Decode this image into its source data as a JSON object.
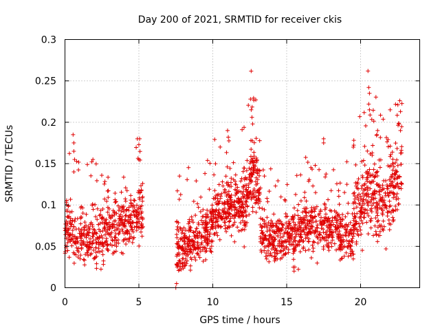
{
  "chart_data": {
    "type": "scatter",
    "title": "Day 200 of 2021, SRMTID for receiver ckis",
    "xlabel": "GPS time / hours",
    "ylabel": "SRMTID / TECUs",
    "xlim": [
      0,
      24
    ],
    "ylim": [
      0,
      0.3
    ],
    "x_ticks": [
      0,
      5,
      10,
      15,
      20
    ],
    "x_tick_labels": [
      "0",
      "5",
      "10",
      "15",
      "20"
    ],
    "y_ticks": [
      0,
      0.05,
      0.1,
      0.15,
      0.2,
      0.25,
      0.3
    ],
    "y_tick_labels": [
      "0",
      "0.05",
      "0.1",
      "0.15",
      "0.2",
      "0.25",
      "0.3"
    ],
    "grid": true,
    "marker": "plus",
    "color": "#e00000",
    "series": [
      {
        "name": "SRMTID",
        "segments": [
          {
            "x_start": 0.0,
            "x_end": 5.3,
            "trend": [
              [
                0.0,
                0.075
              ],
              [
                0.5,
                0.07
              ],
              [
                1.0,
                0.06
              ],
              [
                1.5,
                0.06
              ],
              [
                2.0,
                0.055
              ],
              [
                2.5,
                0.065
              ],
              [
                3.0,
                0.07
              ],
              [
                3.5,
                0.075
              ],
              [
                4.0,
                0.08
              ],
              [
                4.5,
                0.085
              ],
              [
                5.0,
                0.09
              ],
              [
                5.3,
                0.095
              ]
            ],
            "spread": 0.022,
            "count": 520
          },
          {
            "x_start": 7.5,
            "x_end": 12.0,
            "trend": [
              [
                7.5,
                0.045
              ],
              [
                8.0,
                0.05
              ],
              [
                8.5,
                0.055
              ],
              [
                9.0,
                0.06
              ],
              [
                9.5,
                0.07
              ],
              [
                10.0,
                0.08
              ],
              [
                10.5,
                0.09
              ],
              [
                11.0,
                0.1
              ],
              [
                11.5,
                0.095
              ],
              [
                12.0,
                0.1
              ]
            ],
            "spread": 0.022,
            "count": 520
          },
          {
            "x_start": 12.0,
            "x_end": 13.2,
            "trend": [
              [
                12.0,
                0.1
              ],
              [
                12.4,
                0.12
              ],
              [
                12.7,
                0.15
              ],
              [
                13.0,
                0.13
              ],
              [
                13.2,
                0.1
              ]
            ],
            "spread": 0.03,
            "count": 170
          },
          {
            "x_start": 13.2,
            "x_end": 19.5,
            "trend": [
              [
                13.2,
                0.065
              ],
              [
                14.0,
                0.06
              ],
              [
                15.0,
                0.065
              ],
              [
                16.0,
                0.07
              ],
              [
                17.0,
                0.075
              ],
              [
                18.0,
                0.07
              ],
              [
                19.0,
                0.06
              ],
              [
                19.5,
                0.055
              ]
            ],
            "spread": 0.02,
            "count": 640
          },
          {
            "x_start": 19.5,
            "x_end": 22.8,
            "trend": [
              [
                19.5,
                0.08
              ],
              [
                20.0,
                0.1
              ],
              [
                20.5,
                0.12
              ],
              [
                21.0,
                0.11
              ],
              [
                21.5,
                0.1
              ],
              [
                22.0,
                0.12
              ],
              [
                22.5,
                0.13
              ],
              [
                22.8,
                0.15
              ]
            ],
            "spread": 0.03,
            "count": 380
          }
        ],
        "outliers": [
          [
            0.55,
            0.185
          ],
          [
            0.6,
            0.175
          ],
          [
            0.6,
            0.165
          ],
          [
            0.65,
            0.155
          ],
          [
            0.6,
            0.14
          ],
          [
            4.9,
            0.18
          ],
          [
            5.0,
            0.173
          ],
          [
            5.05,
            0.18
          ],
          [
            7.5,
            0.0
          ],
          [
            7.55,
            0.005
          ],
          [
            12.55,
            0.228
          ],
          [
            12.6,
            0.215
          ],
          [
            12.65,
            0.206
          ],
          [
            12.7,
            0.198
          ],
          [
            11.0,
            0.19
          ],
          [
            11.05,
            0.182
          ],
          [
            10.5,
            0.17
          ],
          [
            17.5,
            0.18
          ],
          [
            17.5,
            0.175
          ],
          [
            15.5,
            0.02
          ],
          [
            15.55,
            0.025
          ],
          [
            20.5,
            0.262
          ],
          [
            20.55,
            0.242
          ],
          [
            20.6,
            0.235
          ],
          [
            20.55,
            0.222
          ],
          [
            20.6,
            0.215
          ],
          [
            22.0,
            0.215
          ],
          [
            22.65,
            0.226
          ],
          [
            22.7,
            0.213
          ],
          [
            22.6,
            0.198
          ],
          [
            22.7,
            0.19
          ],
          [
            21.15,
            0.19
          ],
          [
            21.1,
            0.185
          ]
        ]
      }
    ]
  }
}
